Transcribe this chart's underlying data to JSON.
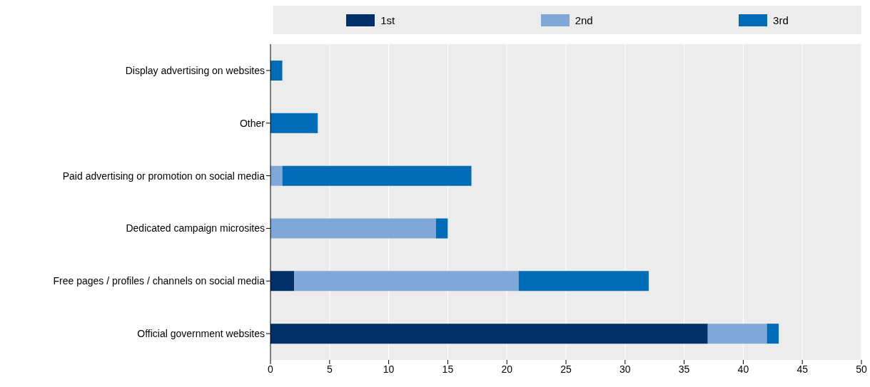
{
  "chart_data": {
    "type": "bar",
    "orientation": "horizontal",
    "stacked": true,
    "categories": [
      "Display advertising on websites",
      "Other",
      "Paid advertising or promotion on social media",
      "Dedicated campaign microsites",
      "Free pages / profiles / channels on social media",
      "Official government websites"
    ],
    "series": [
      {
        "name": "1st",
        "color": "#003067",
        "values": [
          0,
          0,
          0,
          0,
          2,
          37
        ]
      },
      {
        "name": "2nd",
        "color": "#7fa8d9",
        "values": [
          0,
          0,
          1,
          14,
          19,
          5
        ]
      },
      {
        "name": "3rd",
        "color": "#006bb6",
        "values": [
          1,
          4,
          16,
          1,
          11,
          1
        ]
      }
    ],
    "xlim": [
      0,
      50
    ],
    "xticks": [
      0,
      5,
      10,
      15,
      20,
      25,
      30,
      35,
      40,
      45,
      50
    ],
    "grid": "x",
    "legend": "top"
  }
}
